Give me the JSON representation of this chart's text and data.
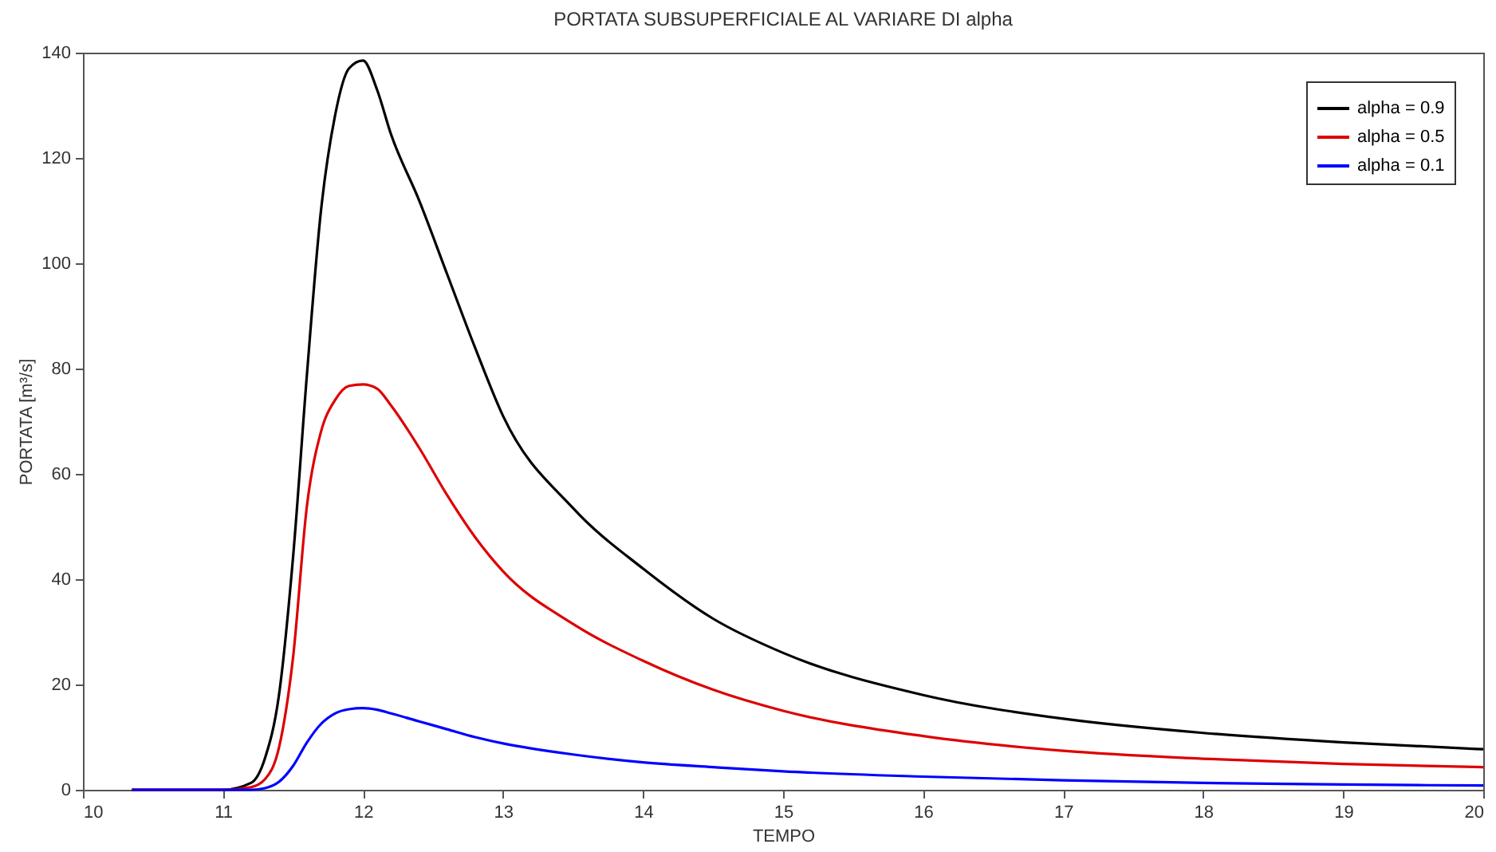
{
  "chart_data": {
    "type": "line",
    "title": "PORTATA SUBSUPERFICIALE AL VARIARE DI alpha",
    "xlabel": "TEMPO",
    "ylabel": "PORTATA [m³/s]",
    "xlim": [
      10,
      20
    ],
    "ylim": [
      0,
      140
    ],
    "xticks": [
      10,
      11,
      12,
      13,
      14,
      15,
      16,
      17,
      18,
      19,
      20
    ],
    "yticks": [
      0,
      20,
      40,
      60,
      80,
      100,
      120,
      140
    ],
    "grid": false,
    "legend": "top right",
    "marker": "none",
    "line_style": "solid",
    "series": [
      {
        "name": "alpha = 0.9",
        "color": "#000000",
        "x": [
          10.35,
          11.0,
          11.2,
          11.3,
          11.4,
          11.5,
          11.6,
          11.7,
          11.8,
          11.9,
          12.0,
          12.1,
          12.2,
          12.4,
          12.6,
          12.8,
          13.0,
          13.5,
          14.0,
          14.5,
          15.0,
          16.0,
          17.0,
          18.0,
          19.0,
          20.0
        ],
        "values": [
          0,
          0,
          1.3,
          6,
          18,
          44,
          79,
          110,
          128,
          137,
          138.5,
          133,
          124.5,
          112,
          98,
          84,
          71,
          53.5,
          42,
          32.5,
          26,
          18,
          13.5,
          10.8,
          9,
          7.7
        ]
      },
      {
        "name": "alpha = 0.5",
        "color": "#dd0000",
        "x": [
          10.35,
          11.0,
          11.2,
          11.3,
          11.4,
          11.5,
          11.6,
          11.7,
          11.8,
          11.9,
          12.0,
          12.1,
          12.2,
          12.4,
          12.6,
          12.8,
          13.0,
          13.5,
          14.0,
          14.5,
          15.0,
          16.0,
          17.0,
          18.0,
          19.0,
          20.0
        ],
        "values": [
          0,
          0,
          0.5,
          2,
          8,
          25,
          54,
          68,
          74,
          76.7,
          77,
          76.2,
          73,
          65,
          56,
          48,
          41.5,
          31.5,
          24.5,
          19,
          15,
          10.2,
          7.4,
          5.9,
          4.9,
          4.3
        ]
      },
      {
        "name": "alpha = 0.1",
        "color": "#0000ff",
        "x": [
          10.35,
          11.0,
          11.2,
          11.3,
          11.4,
          11.5,
          11.6,
          11.7,
          11.8,
          11.9,
          12.0,
          12.1,
          12.2,
          12.4,
          12.6,
          12.8,
          13.0,
          13.5,
          14.0,
          14.5,
          15.0,
          16.0,
          17.0,
          18.0,
          19.0,
          20.0
        ],
        "values": [
          0,
          0,
          0,
          0.3,
          1.5,
          4.5,
          9,
          12.5,
          14.5,
          15.3,
          15.5,
          15.2,
          14.5,
          13,
          11.5,
          10,
          8.8,
          6.7,
          5.2,
          4.3,
          3.5,
          2.5,
          1.8,
          1.3,
          1.0,
          0.8
        ]
      }
    ]
  }
}
